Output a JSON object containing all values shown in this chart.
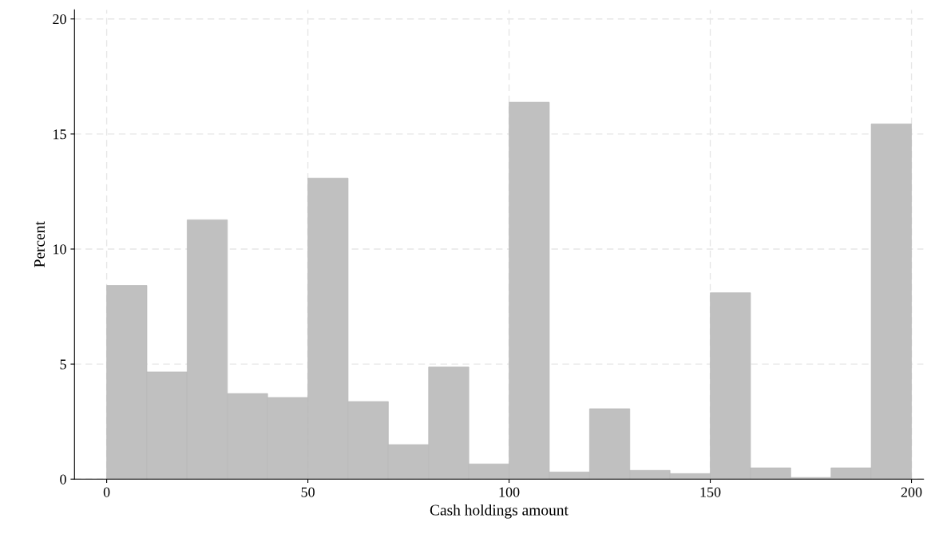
{
  "chart_data": {
    "type": "histogram",
    "xlabel": "Cash holdings amount",
    "ylabel": "Percent",
    "color": "#c0c0c0",
    "bins": [
      0,
      10,
      20,
      30,
      40,
      50,
      60,
      70,
      80,
      90,
      100,
      110,
      120,
      130,
      140,
      150,
      160,
      170,
      180,
      190,
      200
    ],
    "values": [
      8.42,
      4.66,
      11.27,
      3.72,
      3.55,
      13.08,
      3.37,
      1.5,
      4.87,
      0.66,
      16.38,
      0.31,
      3.06,
      0.38,
      0.24,
      8.1,
      0.49,
      0.07,
      0.49,
      15.44
    ],
    "xlim": [
      -8,
      203
    ],
    "xticks": [
      0,
      50,
      100,
      150,
      200
    ],
    "ylim": [
      0,
      20.4
    ],
    "yticks": [
      0,
      5,
      10,
      15,
      20
    ],
    "grid": true
  }
}
